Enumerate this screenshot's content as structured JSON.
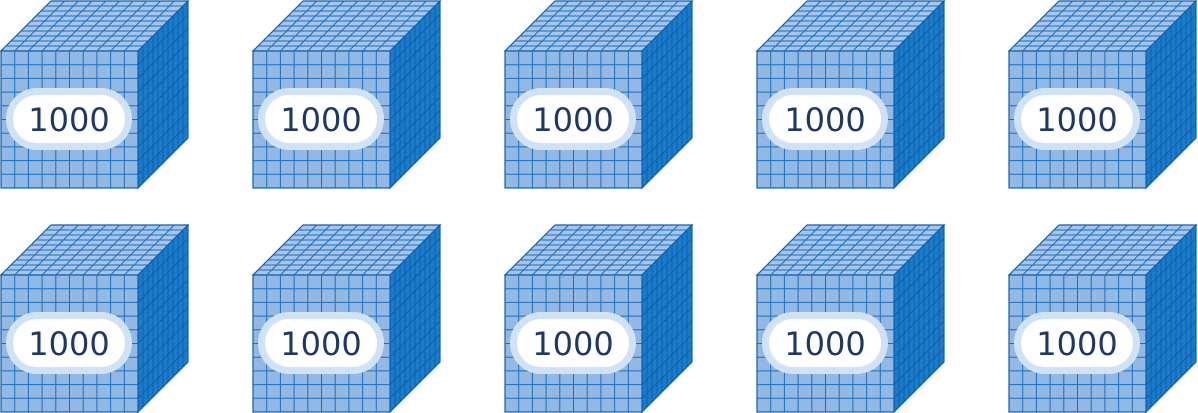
{
  "colors": {
    "front_face": "#94b8e4",
    "top_face": "#a7c4ea",
    "side_face": "#1a7cc8",
    "grid_line": "#1a6fc0",
    "grid_line_dark": "#0e5fae",
    "label_ring": "#d2e2f6",
    "label_fill": "#ffffff",
    "label_text": "#1d3866"
  },
  "blocks": [
    {
      "label": "1000"
    },
    {
      "label": "1000"
    },
    {
      "label": "1000"
    },
    {
      "label": "1000"
    },
    {
      "label": "1000"
    },
    {
      "label": "1000"
    },
    {
      "label": "1000"
    },
    {
      "label": "1000"
    },
    {
      "label": "1000"
    },
    {
      "label": "1000"
    }
  ]
}
